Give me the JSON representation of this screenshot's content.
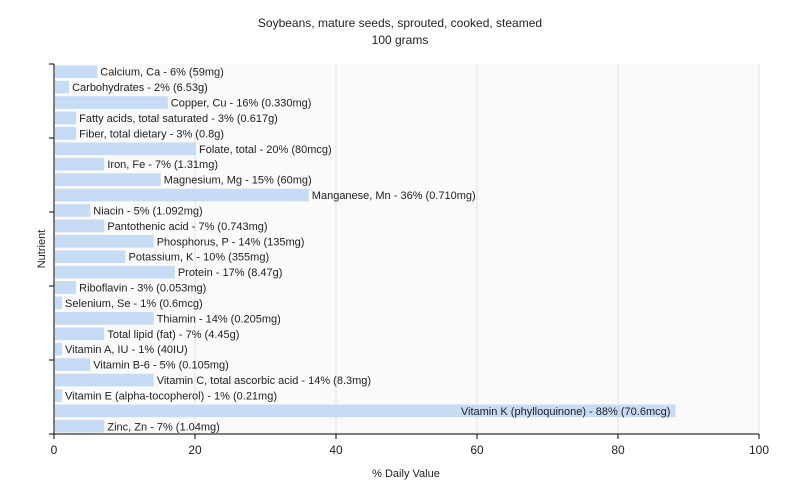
{
  "chart_data": {
    "type": "bar",
    "orientation": "horizontal",
    "title": "Soybeans, mature seeds, sprouted, cooked, steamed",
    "subtitle": "100 grams",
    "xlabel": "% Daily Value",
    "ylabel": "Nutrient",
    "xlim": [
      0,
      100
    ],
    "xticks": [
      0,
      20,
      40,
      60,
      80,
      100
    ],
    "grid": true,
    "bar_color": "#c6dcf5",
    "categories": [
      "Calcium, Ca",
      "Carbohydrates",
      "Copper, Cu",
      "Fatty acids, total saturated",
      "Fiber, total dietary",
      "Folate, total",
      "Iron, Fe",
      "Magnesium, Mg",
      "Manganese, Mn",
      "Niacin",
      "Pantothenic acid",
      "Phosphorus, P",
      "Potassium, K",
      "Protein",
      "Riboflavin",
      "Selenium, Se",
      "Thiamin",
      "Total lipid (fat)",
      "Vitamin A, IU",
      "Vitamin B-6",
      "Vitamin C, total ascorbic acid",
      "Vitamin E (alpha-tocopherol)",
      "Vitamin K (phylloquinone)",
      "Zinc, Zn"
    ],
    "values": [
      6,
      2,
      16,
      3,
      3,
      20,
      7,
      15,
      36,
      5,
      7,
      14,
      10,
      17,
      3,
      1,
      14,
      7,
      1,
      5,
      14,
      1,
      88,
      7
    ],
    "labels": [
      "Calcium, Ca - 6% (59mg)",
      "Carbohydrates - 2% (6.53g)",
      "Copper, Cu - 16% (0.330mg)",
      "Fatty acids, total saturated - 3% (0.617g)",
      "Fiber, total dietary - 3% (0.8g)",
      "Folate, total - 20% (80mcg)",
      "Iron, Fe - 7% (1.31mg)",
      "Magnesium, Mg - 15% (60mg)",
      "Manganese, Mn - 36% (0.710mg)",
      "Niacin - 5% (1.092mg)",
      "Pantothenic acid - 7% (0.743mg)",
      "Phosphorus, P - 14% (135mg)",
      "Potassium, K - 10% (355mg)",
      "Protein - 17% (8.47g)",
      "Riboflavin - 3% (0.053mg)",
      "Selenium, Se - 1% (0.6mcg)",
      "Thiamin - 14% (0.205mg)",
      "Total lipid (fat) - 7% (4.45g)",
      "Vitamin A, IU - 1% (40IU)",
      "Vitamin B-6 - 5% (0.105mg)",
      "Vitamin C, total ascorbic acid - 14% (8.3mg)",
      "Vitamin E (alpha-tocopherol) - 1% (0.21mg)",
      "Vitamin K (phylloquinone) - 88% (70.6mcg)",
      "Zinc, Zn - 7% (1.04mg)"
    ]
  }
}
